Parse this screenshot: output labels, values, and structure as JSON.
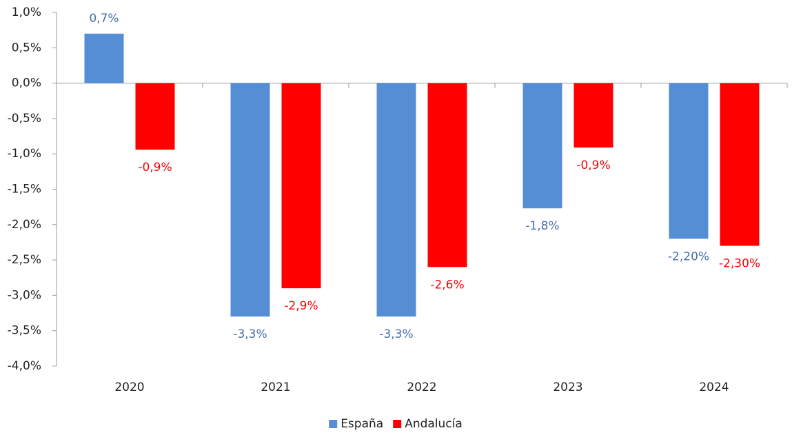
{
  "chart_data": {
    "type": "bar",
    "categories": [
      "2020",
      "2021",
      "2022",
      "2023",
      "2024"
    ],
    "series": [
      {
        "name": "España",
        "color": "#558ed5",
        "label_color": "#4a6fa5",
        "values": [
          0.7,
          -3.3,
          -3.3,
          -1.77,
          -2.2
        ],
        "value_labels": [
          "0,7%",
          "-3,3%",
          "-3,3%",
          "-1,8%",
          "-2,20%"
        ]
      },
      {
        "name": "Andalucía",
        "color": "#ff0000",
        "label_color": "#ff0000",
        "values": [
          -0.94,
          -2.9,
          -2.6,
          -0.91,
          -2.3
        ],
        "value_labels": [
          "-0,9%",
          "-2,9%",
          "-2,6%",
          "-0,9%",
          "-2,30%"
        ]
      }
    ],
    "ylim": [
      -4.0,
      1.0
    ],
    "yticks": [
      {
        "value": 1.0,
        "label": "1,0%"
      },
      {
        "value": 0.5,
        "label": "0,5%"
      },
      {
        "value": 0,
        "label": "0,0%"
      },
      {
        "value": -0.5,
        "label": "-0,5%"
      },
      {
        "value": -1.0,
        "label": "-1,0%"
      },
      {
        "value": -1.5,
        "label": "-1,5%"
      },
      {
        "value": -2.0,
        "label": "-2,0%"
      },
      {
        "value": -2.5,
        "label": "-2,5%"
      },
      {
        "value": -3.0,
        "label": "-3,0%"
      },
      {
        "value": -3.5,
        "label": "-3,5%"
      },
      {
        "value": -4.0,
        "label": "-4,0%"
      }
    ],
    "grid": false,
    "legend": "bottom"
  }
}
